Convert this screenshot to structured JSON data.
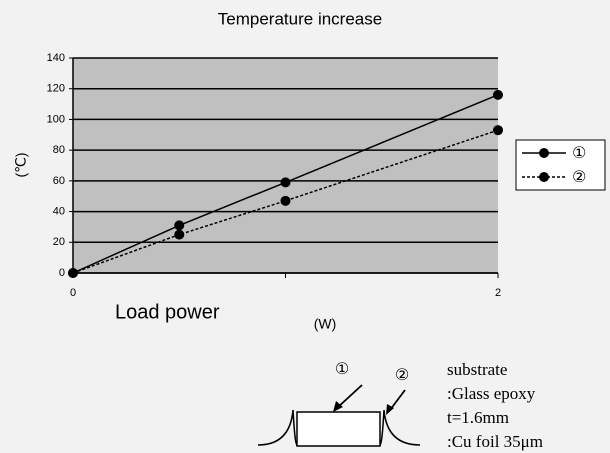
{
  "chart_data": {
    "type": "line",
    "title": "Temperature increase",
    "x_label": "Load power",
    "x_unit": "(W)",
    "y_label": "(℃)",
    "x": [
      0,
      0.5,
      1,
      2
    ],
    "series": [
      {
        "name": "①",
        "color": "#000000",
        "line_style": "solid",
        "values": [
          0,
          31,
          59,
          116
        ]
      },
      {
        "name": "②",
        "color": "#000000",
        "line_style": "dashed",
        "values": [
          0,
          25,
          47,
          93
        ]
      }
    ],
    "xlim": [
      0,
      2
    ],
    "xticks": [
      0,
      2
    ],
    "minor_xticks": [
      1
    ],
    "ylim": [
      0,
      140
    ],
    "yticks": [
      0,
      20,
      40,
      60,
      80,
      100,
      120,
      140
    ],
    "grid": true,
    "plot_background": "#c0c0c0",
    "legend": "right"
  },
  "diagram": {
    "labels": [
      "①",
      "②"
    ],
    "notes": [
      "substrate",
      ":Glass epoxy",
      "t=1.6mm",
      ":Cu foil  35μm"
    ]
  }
}
